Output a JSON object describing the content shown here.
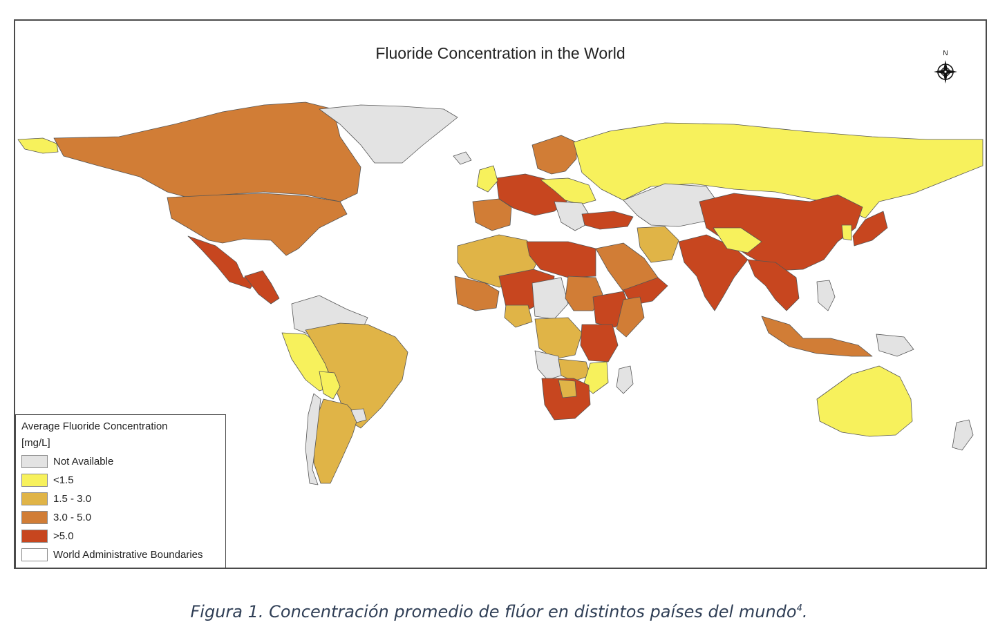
{
  "map": {
    "title": "Fluoride Concentration in the World",
    "north_label": "N"
  },
  "legend": {
    "title": "Average Fluoride Concentration",
    "unit": "[mg/L]",
    "items": [
      {
        "label": "Not Available",
        "color": "#e3e3e3"
      },
      {
        "label": "<1.5",
        "color": "#f7f15c"
      },
      {
        "label": "1.5 - 3.0",
        "color": "#e0b447"
      },
      {
        "label": "3.0 - 5.0",
        "color": "#d17d36"
      },
      {
        "label": ">5.0",
        "color": "#c7461f"
      },
      {
        "label": "World Administrative Boundaries",
        "color": "#ffffff"
      }
    ]
  },
  "regions": [
    {
      "name": "alaska",
      "class": "<1.5"
    },
    {
      "name": "canada",
      "class": "3.0 - 5.0"
    },
    {
      "name": "usa",
      "class": "3.0 - 5.0"
    },
    {
      "name": "mexico",
      "class": ">5.0"
    },
    {
      "name": "greenland",
      "class": "Not Available"
    },
    {
      "name": "central-america",
      "class": ">5.0"
    },
    {
      "name": "colombia-venezuela",
      "class": "Not Available"
    },
    {
      "name": "peru-ecuador",
      "class": "<1.5"
    },
    {
      "name": "brazil",
      "class": "1.5 - 3.0"
    },
    {
      "name": "bolivia",
      "class": "<1.5"
    },
    {
      "name": "argentina",
      "class": "1.5 - 3.0"
    },
    {
      "name": "chile",
      "class": "Not Available"
    },
    {
      "name": "uruguay",
      "class": "Not Available"
    },
    {
      "name": "iberia",
      "class": "3.0 - 5.0"
    },
    {
      "name": "western-europe",
      "class": ">5.0"
    },
    {
      "name": "scandinavia",
      "class": "3.0 - 5.0"
    },
    {
      "name": "central-europe",
      "class": "<1.5"
    },
    {
      "name": "balkans",
      "class": "Not Available"
    },
    {
      "name": "russia",
      "class": "<1.5"
    },
    {
      "name": "central-asia",
      "class": "Not Available"
    },
    {
      "name": "turkey",
      "class": ">5.0"
    },
    {
      "name": "iran",
      "class": "1.5 - 3.0"
    },
    {
      "name": "arabia",
      "class": "3.0 - 5.0"
    },
    {
      "name": "oman-yemen",
      "class": ">5.0"
    },
    {
      "name": "china",
      "class": ">5.0"
    },
    {
      "name": "india",
      "class": ">5.0"
    },
    {
      "name": "mongolia",
      "class": "<1.5"
    },
    {
      "name": "southeast-asia",
      "class": ">5.0"
    },
    {
      "name": "japan",
      "class": ">5.0"
    },
    {
      "name": "korea",
      "class": "<1.5"
    },
    {
      "name": "indonesia",
      "class": "3.0 - 5.0"
    },
    {
      "name": "philippines",
      "class": "Not Available"
    },
    {
      "name": "papua",
      "class": "Not Available"
    },
    {
      "name": "australia",
      "class": "<1.5"
    },
    {
      "name": "new-zealand",
      "class": "Not Available"
    },
    {
      "name": "north-africa-west",
      "class": "1.5 - 3.0"
    },
    {
      "name": "libya-egypt",
      "class": ">5.0"
    },
    {
      "name": "west-africa",
      "class": "3.0 - 5.0"
    },
    {
      "name": "sahel",
      "class": ">5.0"
    },
    {
      "name": "nigeria",
      "class": "1.5 - 3.0"
    },
    {
      "name": "central-africa",
      "class": "Not Available"
    },
    {
      "name": "sudan",
      "class": "3.0 - 5.0"
    },
    {
      "name": "ethiopia",
      "class": ">5.0"
    },
    {
      "name": "somalia",
      "class": "3.0 - 5.0"
    },
    {
      "name": "congo",
      "class": "1.5 - 3.0"
    },
    {
      "name": "east-africa",
      "class": ">5.0"
    },
    {
      "name": "angola",
      "class": "Not Available"
    },
    {
      "name": "zambia",
      "class": "1.5 - 3.0"
    },
    {
      "name": "mozambique",
      "class": "<1.5"
    },
    {
      "name": "southern-africa",
      "class": ">5.0"
    },
    {
      "name": "botswana",
      "class": "1.5 - 3.0"
    },
    {
      "name": "madagascar",
      "class": "Not Available"
    },
    {
      "name": "uk-ireland",
      "class": "<1.5"
    },
    {
      "name": "iceland",
      "class": "Not Available"
    }
  ],
  "caption": {
    "text": "Figura 1. Concentración promedio de flúor en distintos países del mundo",
    "sup": "4",
    "end": "."
  }
}
